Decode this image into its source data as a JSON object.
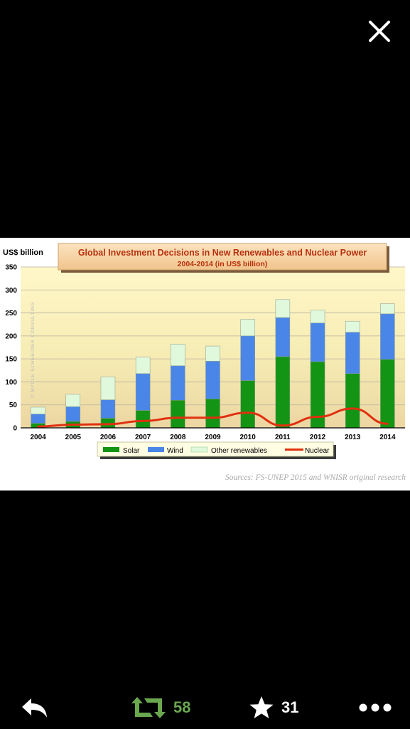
{
  "close_icon": "close-icon",
  "chart_data": {
    "type": "bar",
    "title": "Global Investment Decisions in New Renewables and Nuclear Power",
    "subtitle": "2004-2014  (in US$ billion)",
    "ylabel": "US$ billion",
    "watermark": "© MYCLE SCHNEIDER CONSULTING",
    "source": "Sources: FS-UNEP 2015 and WNISR original research",
    "ylim": [
      0,
      350
    ],
    "yticks": [
      "0",
      "50",
      "100",
      "150",
      "200",
      "250",
      "300",
      "350"
    ],
    "categories": [
      "2004",
      "2005",
      "2006",
      "2007",
      "2008",
      "2009",
      "2010",
      "2011",
      "2012",
      "2013",
      "2014"
    ],
    "stacked": true,
    "grid": true,
    "legend_position": "bottom",
    "series": [
      {
        "name": "Solar",
        "kind": "bar",
        "color": "#149414",
        "values": [
          10,
          14,
          21,
          38,
          60,
          63,
          103,
          155,
          144,
          118,
          149
        ]
      },
      {
        "name": "Wind",
        "kind": "bar",
        "color": "#4a86e8",
        "values": [
          20,
          32,
          40,
          80,
          75,
          82,
          97,
          85,
          84,
          90,
          99
        ]
      },
      {
        "name": "Other renewables",
        "kind": "bar",
        "color": "#e0f8dc",
        "values": [
          15,
          27,
          50,
          36,
          47,
          33,
          36,
          39,
          28,
          24,
          22
        ]
      },
      {
        "name": "Nuclear",
        "kind": "line",
        "color": "#e03010",
        "values": [
          3,
          7,
          8,
          15,
          22,
          22,
          33,
          5,
          24,
          42,
          9
        ]
      }
    ]
  },
  "toolbar": {
    "reply_icon": "reply-icon",
    "retweet_icon": "retweet-icon",
    "retweet_count": "58",
    "retweet_color": "#6aa84f",
    "favorite_icon": "star-icon",
    "favorite_count": "31",
    "more_icon": "more-icon"
  }
}
